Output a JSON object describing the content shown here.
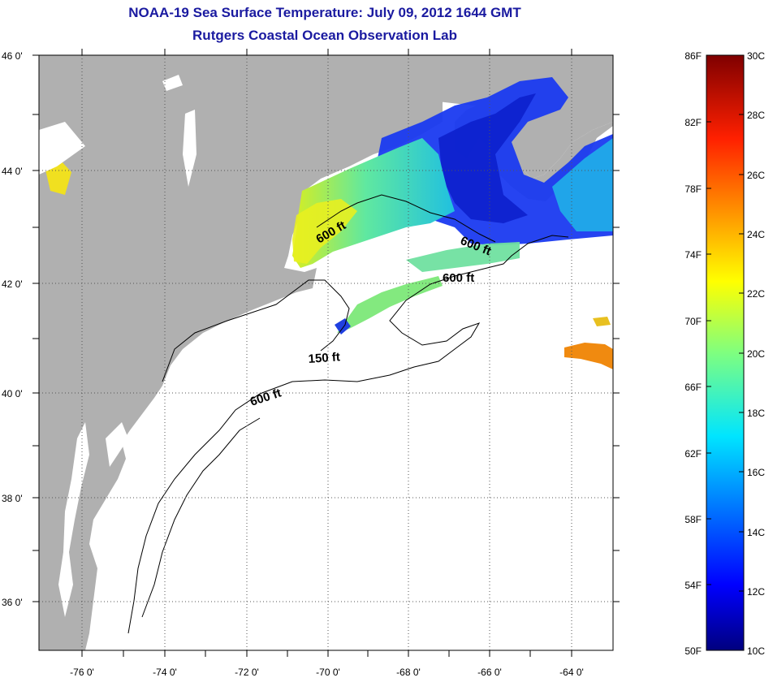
{
  "title": {
    "line1": "NOAA-19 Sea Surface Temperature:  July 09, 2012 1644 GMT",
    "line2": "Rutgers Coastal Ocean Observation Lab"
  },
  "map": {
    "lat_labels": [
      "46 0'",
      "44 0'",
      "42 0'",
      "40 0'",
      "38 0'",
      "36 0'"
    ],
    "lon_labels": [
      "-76 0'",
      "-74 0'",
      "-72 0'",
      "-70 0'",
      "-68 0'",
      "-66 0'",
      "-64 0'"
    ],
    "contour_labels": [
      "600 ft",
      "600 ft",
      "600 ft",
      "150 ft",
      "600 ft"
    ],
    "colors": {
      "land": "#b0b0b0",
      "ocean_nodata": "#ffffff",
      "grid": "#555555"
    }
  },
  "colorbar": {
    "fahrenheit_labels": [
      "86F",
      "82F",
      "78F",
      "74F",
      "70F",
      "66F",
      "62F",
      "58F",
      "54F",
      "50F"
    ],
    "celsius_labels": [
      "30C",
      "28C",
      "26C",
      "24C",
      "22C",
      "20C",
      "18C",
      "16C",
      "14C",
      "12C",
      "10C"
    ],
    "range_celsius": [
      10,
      30
    ],
    "range_fahrenheit": [
      50,
      86
    ],
    "colormap": "jet"
  }
}
